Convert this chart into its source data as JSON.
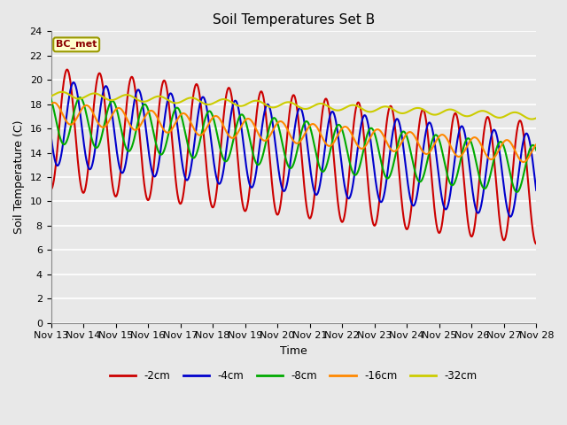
{
  "title": "Soil Temperatures Set B",
  "xlabel": "Time",
  "ylabel": "Soil Temperature (C)",
  "ylim": [
    0,
    24
  ],
  "colors": {
    "-2cm": "#cc0000",
    "-4cm": "#0000cc",
    "-8cm": "#00aa00",
    "-16cm": "#ff8800",
    "-32cm": "#cccc00"
  },
  "legend_labels": [
    "-2cm",
    "-4cm",
    "-8cm",
    "-16cm",
    "-32cm"
  ],
  "annotation": "BC_met",
  "annotation_color": "#8b0000",
  "background_color": "#e8e8e8",
  "fig_background": "#e8e8e8",
  "grid_color": "white",
  "title_fontsize": 11,
  "label_fontsize": 9,
  "tick_fontsize": 8,
  "xtick_labels": [
    "Nov 13",
    "Nov 14",
    "Nov 15",
    "Nov 16",
    "Nov 17",
    "Nov 18",
    "Nov 19",
    "Nov 20",
    "Nov 21",
    "Nov 22",
    "Nov 23",
    "Nov 24",
    "Nov 25",
    "Nov 26",
    "Nov 27",
    "Nov 28"
  ]
}
